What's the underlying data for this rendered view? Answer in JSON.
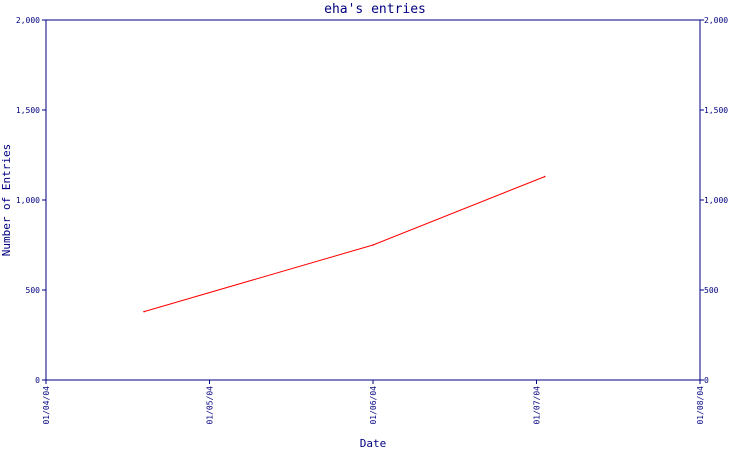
{
  "chart_data": {
    "type": "line",
    "title": "eha's entries",
    "xlabel": "Date",
    "ylabel": "Number of Entries",
    "ylim": [
      0,
      2000
    ],
    "y_ticks": [
      "0",
      "500",
      "1,000",
      "1,500",
      "2,000"
    ],
    "y_tick_values": [
      0,
      500,
      1000,
      1500,
      2000
    ],
    "x_ticks": [
      "01/04/04",
      "01/05/04",
      "01/06/04",
      "01/07/04",
      "01/08/04"
    ],
    "x": [
      "01/04/04 + ~0.6 month",
      "01/06/04",
      "01/07/04 + ~0.05 month"
    ],
    "x_positions": [
      0.6,
      2.0,
      3.05
    ],
    "xlim": [
      0,
      4
    ],
    "series": [
      {
        "values": [
          380,
          750,
          1130
        ]
      }
    ],
    "colors": {
      "axis": "#000080",
      "line": "#ff0000"
    },
    "grid": false,
    "right_axis_mirrors_left": true
  }
}
